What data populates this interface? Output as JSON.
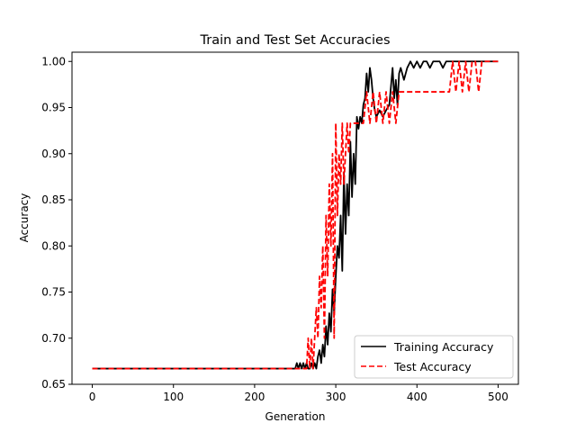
{
  "chart_data": {
    "type": "line",
    "title": "Train and Test Set Accuracies",
    "xlabel": "Generation",
    "ylabel": "Accuracy",
    "xlim": [
      -25,
      525
    ],
    "ylim": [
      0.65,
      1.01
    ],
    "xticks": [
      0,
      100,
      200,
      300,
      400,
      500
    ],
    "xtick_labels": [
      "0",
      "100",
      "200",
      "300",
      "400",
      "500"
    ],
    "yticks": [
      0.65,
      0.7,
      0.75,
      0.8,
      0.85,
      0.9,
      0.95,
      1.0
    ],
    "ytick_labels": [
      "0.65",
      "0.70",
      "0.75",
      "0.80",
      "0.85",
      "0.90",
      "0.95",
      "1.00"
    ],
    "grid": false,
    "legend": {
      "position": "lower-right",
      "entries": [
        "Training Accuracy",
        "Test Accuracy"
      ]
    },
    "series": [
      {
        "name": "Training Accuracy",
        "color": "#000000",
        "style": "solid",
        "x": [
          0,
          250,
          252,
          254,
          256,
          258,
          260,
          262,
          264,
          266,
          268,
          270,
          272,
          274,
          276,
          278,
          280,
          282,
          284,
          286,
          288,
          290,
          292,
          294,
          296,
          298,
          300,
          302,
          304,
          306,
          308,
          310,
          312,
          314,
          316,
          318,
          320,
          322,
          324,
          326,
          328,
          330,
          332,
          334,
          336,
          338,
          340,
          342,
          344,
          346,
          348,
          350,
          354,
          358,
          362,
          366,
          370,
          372,
          374,
          376,
          378,
          380,
          384,
          388,
          392,
          396,
          400,
          404,
          408,
          412,
          416,
          420,
          424,
          428,
          432,
          436,
          440,
          450,
          460,
          470,
          480,
          490,
          500
        ],
        "y": [
          0.667,
          0.667,
          0.673,
          0.667,
          0.673,
          0.667,
          0.673,
          0.667,
          0.673,
          0.667,
          0.667,
          0.673,
          0.667,
          0.673,
          0.667,
          0.68,
          0.687,
          0.673,
          0.693,
          0.68,
          0.713,
          0.693,
          0.727,
          0.707,
          0.753,
          0.727,
          0.767,
          0.8,
          0.787,
          0.833,
          0.773,
          0.88,
          0.813,
          0.867,
          0.833,
          0.913,
          0.853,
          0.9,
          0.867,
          0.94,
          0.927,
          0.94,
          0.933,
          0.953,
          0.96,
          0.987,
          0.967,
          0.993,
          0.98,
          0.96,
          0.947,
          0.94,
          0.947,
          0.94,
          0.947,
          0.953,
          0.993,
          0.96,
          0.98,
          0.953,
          0.987,
          0.993,
          0.98,
          0.993,
          1.0,
          0.993,
          1.0,
          0.993,
          1.0,
          1.0,
          0.993,
          1.0,
          1.0,
          1.0,
          0.993,
          1.0,
          1.0,
          1.0,
          1.0,
          1.0,
          1.0,
          1.0,
          1.0
        ]
      },
      {
        "name": "Test Accuracy",
        "color": "#ff0000",
        "style": "dashed",
        "x": [
          0,
          264,
          266,
          268,
          270,
          272,
          274,
          276,
          278,
          280,
          282,
          284,
          286,
          288,
          290,
          292,
          294,
          296,
          298,
          300,
          302,
          304,
          306,
          308,
          310,
          312,
          314,
          316,
          318,
          320,
          322,
          324,
          326,
          330,
          334,
          338,
          342,
          346,
          350,
          354,
          358,
          362,
          366,
          370,
          374,
          378,
          382,
          386,
          390,
          400,
          420,
          440,
          444,
          448,
          452,
          456,
          460,
          464,
          468,
          472,
          476,
          480,
          484,
          490,
          500
        ],
        "y": [
          0.667,
          0.667,
          0.7,
          0.667,
          0.7,
          0.667,
          0.7,
          0.733,
          0.7,
          0.767,
          0.733,
          0.8,
          0.7,
          0.833,
          0.767,
          0.867,
          0.8,
          0.9,
          0.7,
          0.933,
          0.833,
          0.9,
          0.867,
          0.933,
          0.867,
          0.9,
          0.933,
          0.9,
          0.933,
          0.933,
          0.933,
          0.933,
          0.933,
          0.933,
          0.933,
          0.967,
          0.933,
          0.967,
          0.933,
          0.967,
          0.933,
          0.967,
          0.933,
          0.967,
          0.933,
          0.967,
          0.967,
          0.967,
          0.967,
          0.967,
          0.967,
          0.967,
          1.0,
          0.967,
          1.0,
          0.967,
          1.0,
          0.967,
          1.0,
          1.0,
          0.967,
          1.0,
          1.0,
          1.0,
          1.0
        ]
      }
    ]
  }
}
